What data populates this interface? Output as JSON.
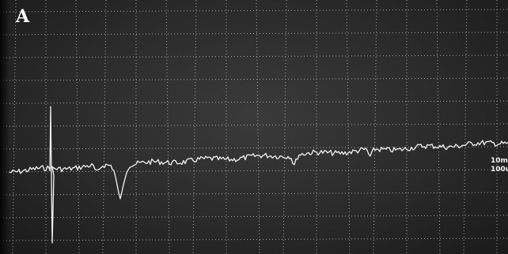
{
  "figure": {
    "panel_label": "A",
    "scale_bar": {
      "line1": "10m",
      "line2": "100u"
    }
  },
  "colors": {
    "screen_background": "#2e2e2e",
    "trace": "#f4f4f4",
    "grid": "#cfcfcf"
  }
}
